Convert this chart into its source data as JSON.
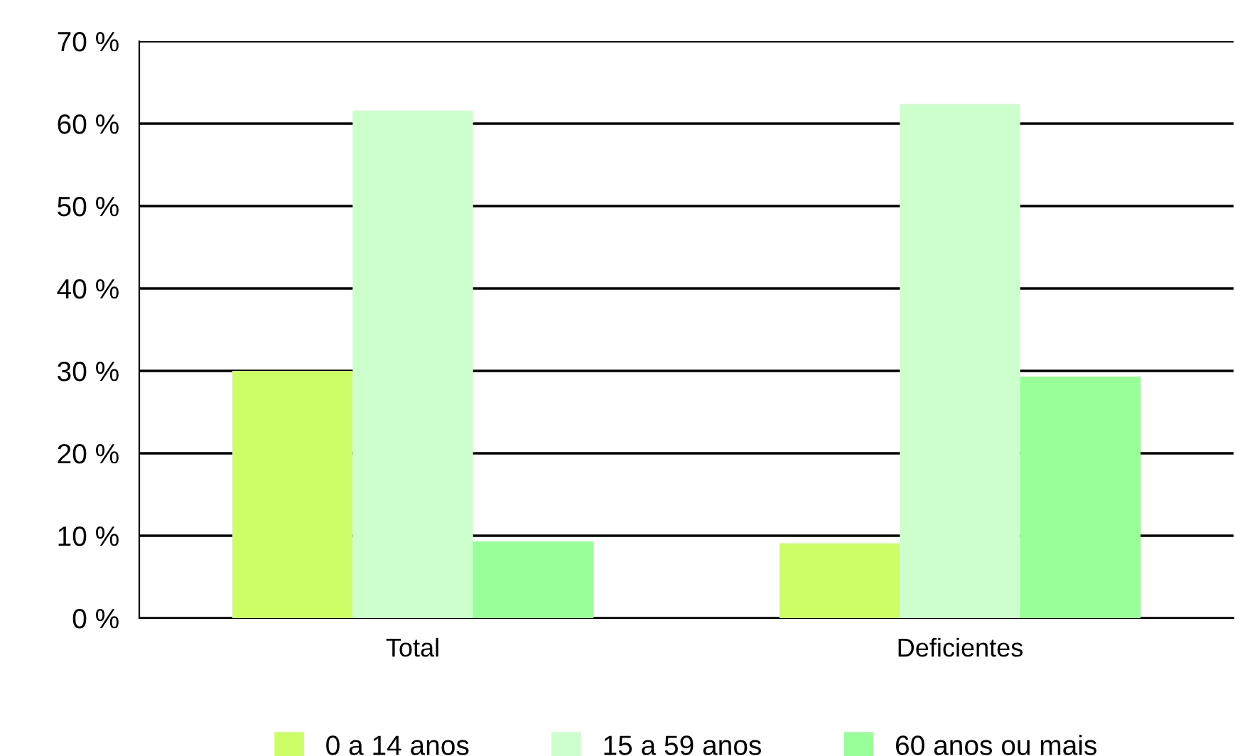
{
  "chart_data": {
    "type": "bar",
    "categories": [
      "Total",
      "Deficientes"
    ],
    "series": [
      {
        "name": "0 a 14 anos",
        "color": "#ccff66",
        "values": [
          30,
          9.1
        ]
      },
      {
        "name": "15 a 59 anos",
        "color": "#ccffcc",
        "values": [
          61.6,
          62.4
        ]
      },
      {
        "name": "60 anos ou mais",
        "color": "#99ff99",
        "values": [
          9.3,
          29.3
        ]
      }
    ],
    "ylim": [
      0,
      70
    ],
    "yticks": [
      {
        "value": 0,
        "label": "0 %"
      },
      {
        "value": 10,
        "label": "10 %"
      },
      {
        "value": 20,
        "label": "20 %"
      },
      {
        "value": 30,
        "label": "30 %"
      },
      {
        "value": 40,
        "label": "40 %"
      },
      {
        "value": 50,
        "label": "50 %"
      },
      {
        "value": 60,
        "label": "60 %"
      },
      {
        "value": 70,
        "label": "70 %"
      }
    ],
    "grid": "y",
    "legend": "bottom"
  }
}
